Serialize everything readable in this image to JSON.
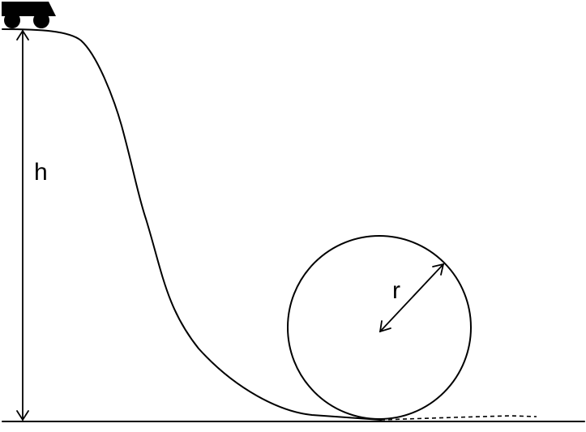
{
  "diagram": {
    "labels": {
      "height": "h",
      "radius": "r"
    },
    "colors": {
      "line": "#000000",
      "background": "#ffffff"
    },
    "icons": {
      "cart": "roller-coaster-cart-icon"
    }
  }
}
